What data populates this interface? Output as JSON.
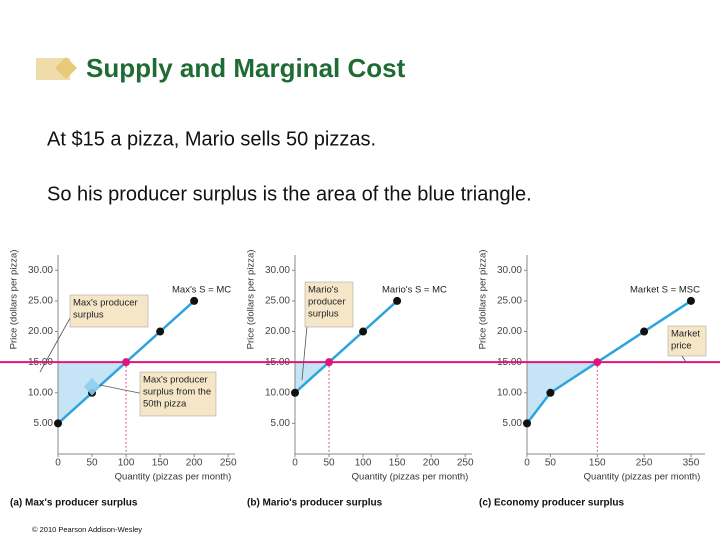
{
  "header": {
    "title": "Supply and Marginal Cost"
  },
  "text": {
    "lines": [
      "At $15 a pizza, Mario sells 50 pizzas.",
      "So his producer surplus is the area of the blue triangle."
    ]
  },
  "chart_data": [
    {
      "type": "line",
      "title": "(a) Max's producer surplus",
      "xlabel": "Quantity (pizzas per month)",
      "ylabel": "Price (dollars per pizza)",
      "series": [
        {
          "name": "Max's S = MC",
          "color": "#2fa4dc",
          "x": [
            0,
            50,
            100,
            150,
            200
          ],
          "values": [
            5,
            10,
            15,
            20,
            25
          ]
        }
      ],
      "hline": {
        "value": 15,
        "color": "#e0157a"
      },
      "highlight": {
        "x": 100,
        "y": 15
      },
      "annotations": [
        [
          "Max's producer",
          "surplus"
        ],
        [
          "Max's producer",
          "surplus from the",
          "50th pizza"
        ]
      ],
      "xlim": [
        0,
        260
      ],
      "xticks": [
        0,
        50,
        100,
        150,
        200,
        250
      ],
      "ylim": [
        0,
        32.5
      ],
      "yticks": [
        {
          "value": 5,
          "label": "5.00"
        },
        {
          "value": 10,
          "label": "10.00"
        },
        {
          "value": 15,
          "label": "15.00"
        },
        {
          "value": 20,
          "label": "20.00"
        },
        {
          "value": 25,
          "label": "25.00"
        },
        {
          "value": 30,
          "label": "30.00"
        }
      ]
    },
    {
      "type": "line",
      "title": "(b) Mario's producer surplus",
      "xlabel": "Quantity (pizzas per month)",
      "ylabel": "Price (dollars per pizza)",
      "series": [
        {
          "name": "Mario's S = MC",
          "color": "#2fa4dc",
          "x": [
            0,
            50,
            100,
            150
          ],
          "values": [
            10,
            15,
            20,
            25
          ]
        }
      ],
      "hline": {
        "value": 15,
        "color": "#e0157a"
      },
      "highlight": {
        "x": 50,
        "y": 15
      },
      "annotations": [
        [
          "Mario's",
          "producer",
          "surplus"
        ]
      ],
      "xlim": [
        0,
        260
      ],
      "xticks": [
        0,
        50,
        100,
        150,
        200,
        250
      ],
      "ylim": [
        0,
        32.5
      ],
      "yticks": [
        {
          "value": 5,
          "label": "5.00"
        },
        {
          "value": 10,
          "label": "10.00"
        },
        {
          "value": 15,
          "label": "15.00"
        },
        {
          "value": 20,
          "label": "20.00"
        },
        {
          "value": 25,
          "label": "25.00"
        },
        {
          "value": 30,
          "label": "30.00"
        }
      ]
    },
    {
      "type": "line",
      "title": "(c) Economy producer surplus",
      "xlabel": "Quantity (pizzas per month)",
      "ylabel": "Price (dollars per pizza)",
      "series": [
        {
          "name": "Market S = MSC",
          "color": "#2fa4dc",
          "x": [
            0,
            50,
            150,
            250,
            350
          ],
          "values": [
            5,
            10,
            15,
            20,
            25
          ]
        }
      ],
      "hline": {
        "value": 15,
        "color": "#e0157a"
      },
      "highlight": {
        "x": 150,
        "y": 15
      },
      "annotations": [
        [
          "Market",
          "price"
        ]
      ],
      "xlim": [
        0,
        380
      ],
      "xticks": [
        0,
        50,
        150,
        250,
        350
      ],
      "ylim": [
        0,
        32.5
      ],
      "yticks": [
        {
          "value": 5,
          "label": "5.00"
        },
        {
          "value": 10,
          "label": "10.00"
        },
        {
          "value": 15,
          "label": "15.00"
        },
        {
          "value": 20,
          "label": "20.00"
        },
        {
          "value": 25,
          "label": "25.00"
        },
        {
          "value": 30,
          "label": "30.00"
        }
      ]
    }
  ],
  "footer": "© 2010 Pearson Addison-Wesley"
}
